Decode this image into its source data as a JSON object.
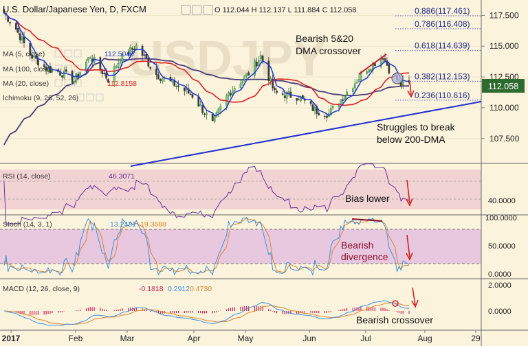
{
  "header": {
    "symbol": "U.S. Dollar/Japanese Yen, D, FXCM",
    "ohlc": "O 112.044 H 112.137 L 111.884 C 112.058",
    "icons": [
      "eye-icon",
      "settings-icon",
      "close-icon"
    ]
  },
  "colors": {
    "background": "#fbf3dc",
    "up_candle": "#2e7d32",
    "down_candle": "#3a3a3a",
    "ma5": "#1f3fd6",
    "ma20": "#e02020",
    "ma100": "#4a3c78",
    "trendline": "#1f2fd0",
    "fib_line": "#3b4fd8",
    "price_label_bg": "#2e6b2e",
    "rsi_band": "#f2d3d3",
    "rsi_line": "#6a2c9a",
    "stoch_band": "#e8c8df",
    "stoch_k": "#3d8fe0",
    "stoch_d": "#e0802a",
    "macd_line": "#3d8fe0",
    "signal_line": "#e0802a",
    "annotation_arrow": "#d42020",
    "annotation_text": "#111111",
    "divergence_text": "#8a0f2a"
  },
  "price_panel": {
    "indicators": [
      {
        "label": "MA (5, close)",
        "value": "112.5040",
        "value_color": "#1f3fd6"
      },
      {
        "label": "MA (100, close)",
        "value": "",
        "value_color": "#4a3c78"
      },
      {
        "label": "MA (20, close)",
        "value": "112.8158",
        "value_color": "#e02020"
      },
      {
        "label": "Ichimoku (9, 26, 52, 26)",
        "value": "",
        "value_color": "#888888"
      }
    ],
    "y_ticks": [
      "117.500",
      "115.000",
      "112.500",
      "110.000",
      "107.500"
    ],
    "y_tick_values": [
      117.5,
      115.0,
      112.5,
      110.0,
      107.5
    ],
    "y_range": [
      105.6,
      118.3
    ],
    "current_price": "112.058",
    "current_price_value": 112.058,
    "fib_levels": [
      {
        "label": "0.886(117.461)",
        "value": 117.461
      },
      {
        "label": "0.786(116.408)",
        "value": 116.408
      },
      {
        "label": "0.618(114.639)",
        "value": 114.639
      },
      {
        "label": "0.382(112.153)",
        "value": 112.153
      },
      {
        "label": "0.236(110.616)",
        "value": 110.616
      }
    ],
    "annotations": {
      "crossover_line1": "Bearish 5&20",
      "crossover_line2": "DMA crossover",
      "struggle_line1": "Struggles to break",
      "struggle_line2": "below 200-DMA"
    },
    "watermark": "USDJPY"
  },
  "rsi_panel": {
    "label": "RSI (14, close)",
    "value": "46.3071",
    "y_tick": "40.0000",
    "annotation": "Bias lower"
  },
  "stoch_panel": {
    "label": "Stoch (14, 3, 1)",
    "k_value": "13.2431",
    "d_value": "19.3688",
    "y_ticks": [
      "100.0000",
      "50.0000",
      "0.0000"
    ],
    "annotation_line1": "Bearish",
    "annotation_line2": "divergence"
  },
  "macd_panel": {
    "label": "MACD (12, 26, close, 9)",
    "values": [
      "-0.1818",
      "0.2912",
      "0.4730"
    ],
    "value_colors": [
      "#cc2255",
      "#3d8fe0",
      "#e0802a"
    ],
    "y_ticks": [
      "2.0000",
      "0.0000"
    ],
    "annotation": "Bearish crossover"
  },
  "x_axis": {
    "labels": [
      "2017",
      "Feb",
      "Mar",
      "Apr",
      "May",
      "Jun",
      "Jul",
      "Aug",
      "29"
    ]
  },
  "chart_data": {
    "type": "candlestick",
    "title": "U.S. Dollar/Japanese Yen, D, FXCM",
    "x_range": [
      "2017-01-01",
      "2017-08-29"
    ],
    "y_range": [
      105.6,
      118.3
    ],
    "close_anchors": [
      {
        "date": "2017-01-03",
        "close": 117.7
      },
      {
        "date": "2017-01-09",
        "close": 116.4
      },
      {
        "date": "2017-01-16",
        "close": 114.3
      },
      {
        "date": "2017-01-24",
        "close": 113.2
      },
      {
        "date": "2017-02-01",
        "close": 112.8
      },
      {
        "date": "2017-02-07",
        "close": 112.2
      },
      {
        "date": "2017-02-15",
        "close": 114.2
      },
      {
        "date": "2017-02-24",
        "close": 112.3
      },
      {
        "date": "2017-03-02",
        "close": 114.0
      },
      {
        "date": "2017-03-10",
        "close": 115.0
      },
      {
        "date": "2017-03-20",
        "close": 112.7
      },
      {
        "date": "2017-03-30",
        "close": 111.8
      },
      {
        "date": "2017-04-07",
        "close": 111.0
      },
      {
        "date": "2017-04-17",
        "close": 108.7
      },
      {
        "date": "2017-04-25",
        "close": 111.2
      },
      {
        "date": "2017-05-05",
        "close": 112.8
      },
      {
        "date": "2017-05-11",
        "close": 114.2
      },
      {
        "date": "2017-05-18",
        "close": 111.2
      },
      {
        "date": "2017-05-30",
        "close": 110.9
      },
      {
        "date": "2017-06-07",
        "close": 109.8
      },
      {
        "date": "2017-06-14",
        "close": 109.5
      },
      {
        "date": "2017-06-23",
        "close": 111.3
      },
      {
        "date": "2017-07-03",
        "close": 113.2
      },
      {
        "date": "2017-07-11",
        "close": 114.2
      },
      {
        "date": "2017-07-15",
        "close": 112.8
      },
      {
        "date": "2017-07-20",
        "close": 111.9
      },
      {
        "date": "2017-07-24",
        "close": 112.058
      }
    ]
  }
}
